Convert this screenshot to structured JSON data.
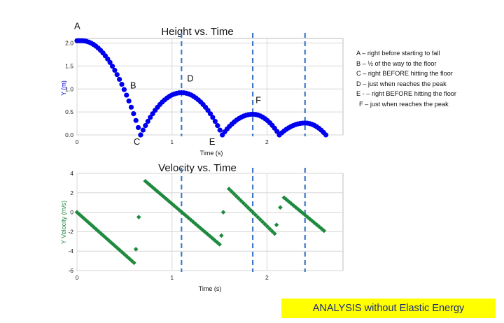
{
  "annotation_list": [
    "A – right before starting to fall",
    "B – ½ of the way to the floor",
    "C – right BEFORE hitting the floor",
    "D – just when reaches the peak",
    "E - – right BEFORE hitting the floor",
    "F – just when reaches the peak"
  ],
  "banner_text": "ANALYSIS  without Elastic Energy",
  "chart_data": [
    {
      "type": "scatter",
      "title": "Height vs. Time",
      "xlabel": "Time (s)",
      "ylabel": "Y (m)",
      "xlim": [
        0,
        2.8
      ],
      "ylim": [
        0,
        2.1
      ],
      "xticks": [
        "0",
        "1",
        "2"
      ],
      "yticks": [
        "0.0",
        "0.5",
        "1.0",
        "1.5",
        "2.0"
      ],
      "grid": true,
      "series": [
        {
          "color": "#0000ee",
          "marker": "circle",
          "segments": [
            {
              "t0": 0.0,
              "t1": 0.67,
              "peak_t": 0.05,
              "peak_y": 2.05
            },
            {
              "t0": 0.67,
              "t1": 1.53,
              "peak_t": 1.1,
              "peak_y": 0.92
            },
            {
              "t0": 1.53,
              "t1": 2.13,
              "peak_t": 1.85,
              "peak_y": 0.45
            },
            {
              "t0": 2.13,
              "t1": 2.62,
              "peak_t": 2.4,
              "peak_y": 0.26
            }
          ],
          "sample_dt": 0.025
        }
      ],
      "vlines": [
        1.1,
        1.85,
        2.4
      ],
      "point_labels": [
        {
          "text": "A",
          "t": 0.0,
          "y": 2.05
        },
        {
          "text": "B",
          "t": 0.53,
          "y": 0.98
        },
        {
          "text": "C",
          "t": 0.64,
          "y": 0.0
        },
        {
          "text": "D",
          "t": 1.1,
          "y": 0.92
        },
        {
          "text": "E",
          "t": 1.45,
          "y": 0.0
        },
        {
          "text": "F",
          "t": 1.85,
          "y": 0.45
        }
      ]
    },
    {
      "type": "scatter",
      "title": "Velocity vs. Time",
      "xlabel": "Time (s)",
      "ylabel": "Y Velocity (m/s)",
      "xlim": [
        0,
        2.8
      ],
      "ylim": [
        -6,
        4
      ],
      "xticks": [
        "0",
        "1",
        "2"
      ],
      "yticks": [
        "-6",
        "-4",
        "-2",
        "0",
        "2",
        "4"
      ],
      "grid": true,
      "series": [
        {
          "color": "#1e8a3e",
          "marker": "diamond",
          "segments": [
            {
              "t0": 0.0,
              "t1": 0.6,
              "v0": 0.0,
              "v1": -5.2
            },
            {
              "t0": 0.72,
              "t1": 1.5,
              "v0": 3.2,
              "v1": -3.3
            },
            {
              "t0": 1.6,
              "t1": 2.08,
              "v0": 2.4,
              "v1": -2.2
            },
            {
              "t0": 2.18,
              "t1": 2.6,
              "v0": 1.5,
              "v1": -1.9
            }
          ],
          "extra_points": [
            [
              0.62,
              -3.8
            ],
            [
              0.65,
              -0.5
            ],
            [
              1.52,
              -2.4
            ],
            [
              1.54,
              0.0
            ],
            [
              2.1,
              -1.3
            ],
            [
              2.14,
              0.5
            ]
          ],
          "sample_dt": 0.025
        }
      ],
      "vlines": [
        1.1,
        1.85,
        2.4
      ]
    }
  ]
}
